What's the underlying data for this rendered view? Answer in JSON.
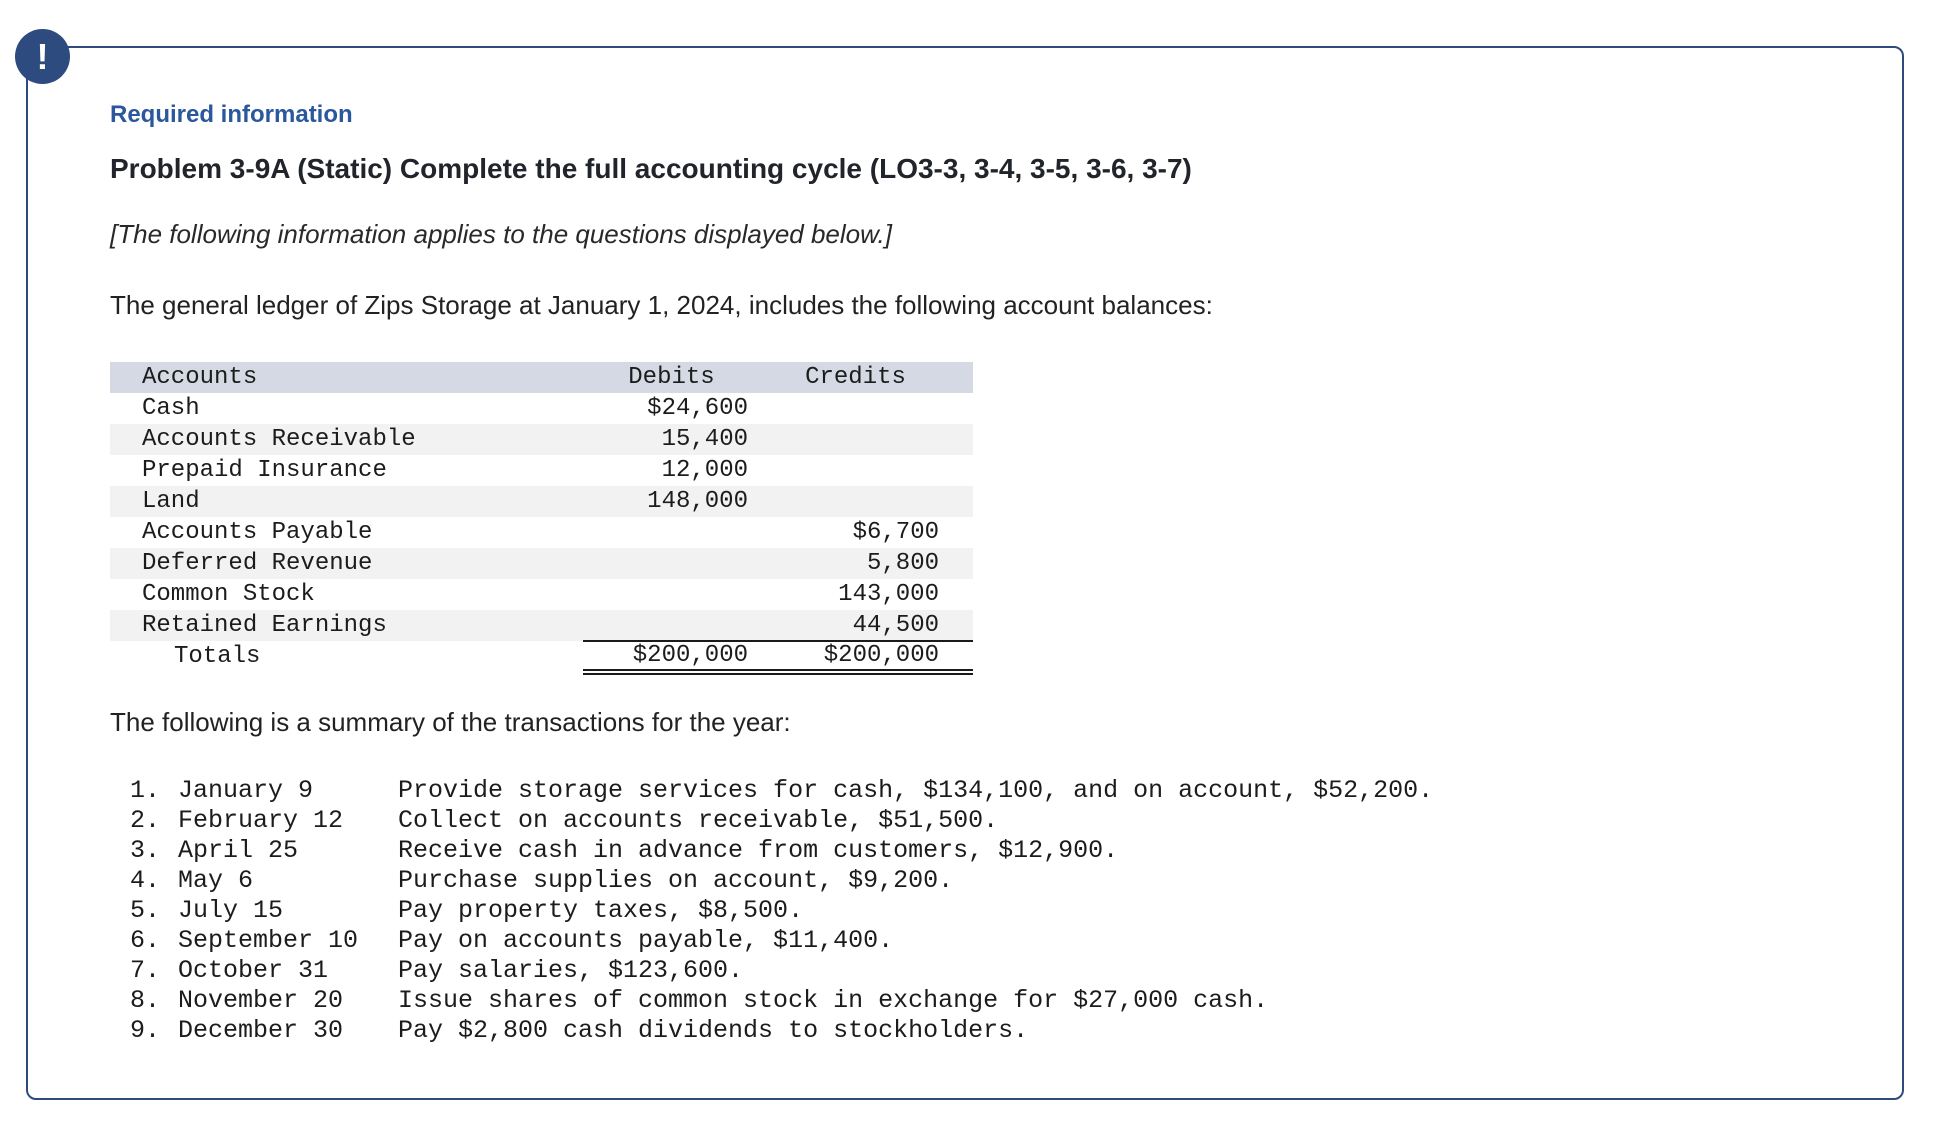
{
  "alert": {
    "icon_glyph": "!"
  },
  "header": {
    "required_label": "Required information",
    "problem_title": "Problem 3-9A (Static) Complete the full accounting cycle (LO3-3, 3-4, 3-5, 3-6, 3-7)",
    "applies_note": "[The following information applies to the questions displayed below.]"
  },
  "intro_text": "The general ledger of Zips Storage at January 1, 2024, includes the following account balances:",
  "ledger": {
    "headers": [
      "Accounts",
      "Debits",
      "Credits"
    ],
    "rows": [
      {
        "account": "Cash",
        "debit": "$24,600",
        "credit": ""
      },
      {
        "account": "Accounts Receivable",
        "debit": "15,400",
        "credit": ""
      },
      {
        "account": "Prepaid Insurance",
        "debit": "12,000",
        "credit": ""
      },
      {
        "account": "Land",
        "debit": "148,000",
        "credit": ""
      },
      {
        "account": "Accounts Payable",
        "debit": "",
        "credit": "$6,700"
      },
      {
        "account": "Deferred Revenue",
        "debit": "",
        "credit": "5,800"
      },
      {
        "account": "Common Stock",
        "debit": "",
        "credit": "143,000"
      },
      {
        "account": "Retained Earnings",
        "debit": "",
        "credit": "44,500"
      }
    ],
    "totals": {
      "label": "Totals",
      "debit": "$200,000",
      "credit": "$200,000"
    }
  },
  "summary_heading": "The following is a summary of the transactions for the year:",
  "transactions": [
    {
      "num": "1.",
      "date": "January 9",
      "desc": "Provide storage services for cash, $134,100, and on account, $52,200."
    },
    {
      "num": "2.",
      "date": "February 12",
      "desc": "Collect on accounts receivable, $51,500."
    },
    {
      "num": "3.",
      "date": "April 25",
      "desc": "Receive cash in advance from customers, $12,900."
    },
    {
      "num": "4.",
      "date": "May 6",
      "desc": "Purchase supplies on account, $9,200."
    },
    {
      "num": "5.",
      "date": "July 15",
      "desc": "Pay property taxes, $8,500."
    },
    {
      "num": "6.",
      "date": "September 10",
      "desc": "Pay on accounts payable, $11,400."
    },
    {
      "num": "7.",
      "date": "October 31",
      "desc": "Pay salaries, $123,600."
    },
    {
      "num": "8.",
      "date": "November 20",
      "desc": "Issue shares of common stock in exchange for $27,000 cash."
    },
    {
      "num": "9.",
      "date": "December 30",
      "desc": "Pay $2,800 cash dividends to stockholders."
    }
  ],
  "colors": {
    "accent_navy": "#2d4b7e",
    "heading_blue": "#2b579d",
    "table_header_bg": "#d4d9e3",
    "row_stripe": "#f2f2f3"
  }
}
